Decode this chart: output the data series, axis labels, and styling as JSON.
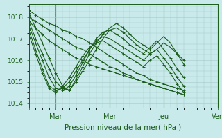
{
  "bg_color": "#c8eaea",
  "plot_bg_color": "#c8eaea",
  "grid_color": "#a8c8c8",
  "line_color": "#1a5c1a",
  "marker": "+",
  "markersize": 3,
  "linewidth": 0.8,
  "xlabel": "Pression niveau de la mer( hPa )",
  "xlabel_fontsize": 7.5,
  "ylim": [
    1013.8,
    1018.6
  ],
  "yticks": [
    1014,
    1015,
    1016,
    1017,
    1018
  ],
  "ytick_fontsize": 6.5,
  "xtick_labels": [
    "",
    "Mar",
    "",
    "Mer",
    "",
    "Jeu",
    "",
    "Ven"
  ],
  "xtick_positions": [
    0,
    24,
    48,
    72,
    96,
    120,
    144,
    168
  ],
  "xtick_fontsize": 7,
  "series": [
    [
      1018.3,
      1018.1,
      1017.9,
      1017.7,
      1017.6,
      1017.4,
      1017.3,
      1017.1,
      1017.0,
      1016.8,
      1016.6,
      1016.4,
      1016.2,
      1016.0,
      1015.8,
      1015.6,
      1015.4,
      1015.3,
      1015.1,
      1015.0,
      1014.9,
      1014.8,
      1014.7,
      1014.6
    ],
    [
      1018.0,
      1017.8,
      1017.6,
      1017.4,
      1017.2,
      1017.0,
      1016.8,
      1016.6,
      1016.5,
      1016.3,
      1016.1,
      1015.9,
      1015.7,
      1015.6,
      1015.4,
      1015.3,
      1015.1,
      1015.0,
      1014.9,
      1014.8,
      1014.7,
      1014.6,
      1014.5,
      1014.4
    ],
    [
      1017.8,
      1017.0,
      1016.3,
      1015.6,
      1015.0,
      1014.7,
      1014.6,
      1015.0,
      1015.5,
      1016.0,
      1016.5,
      1017.0,
      1017.4,
      1017.5,
      1017.3,
      1017.0,
      1016.7,
      1016.5,
      1016.3,
      1016.5,
      1016.8,
      1016.6,
      1016.3,
      1016.0
    ],
    [
      1018.2,
      1017.5,
      1016.8,
      1016.1,
      1015.4,
      1014.8,
      1014.6,
      1015.1,
      1015.7,
      1016.3,
      1016.8,
      1017.2,
      1017.5,
      1017.7,
      1017.5,
      1017.2,
      1016.9,
      1016.7,
      1016.5,
      1016.8,
      1017.1,
      1016.8,
      1016.3,
      1015.8
    ],
    [
      1017.6,
      1016.8,
      1016.0,
      1015.2,
      1014.7,
      1014.6,
      1014.8,
      1015.3,
      1015.9,
      1016.5,
      1017.0,
      1017.3,
      1017.4,
      1017.2,
      1017.0,
      1016.7,
      1016.5,
      1016.3,
      1016.6,
      1016.9,
      1016.5,
      1016.1,
      1015.6,
      1015.2
    ],
    [
      1017.4,
      1016.5,
      1015.6,
      1014.8,
      1014.6,
      1014.7,
      1015.0,
      1015.5,
      1016.0,
      1016.5,
      1016.9,
      1017.1,
      1017.0,
      1016.8,
      1016.6,
      1016.4,
      1016.2,
      1016.0,
      1016.3,
      1016.5,
      1016.1,
      1015.7,
      1015.2,
      1014.8
    ],
    [
      1017.2,
      1016.3,
      1015.4,
      1014.7,
      1014.5,
      1014.8,
      1015.2,
      1015.7,
      1016.2,
      1016.6,
      1016.8,
      1016.9,
      1016.7,
      1016.5,
      1016.3,
      1016.1,
      1015.9,
      1015.7,
      1016.0,
      1016.2,
      1015.8,
      1015.4,
      1014.9,
      1014.5
    ],
    [
      1017.8,
      1017.5,
      1017.2,
      1016.9,
      1016.7,
      1016.5,
      1016.3,
      1016.1,
      1016.0,
      1015.8,
      1015.7,
      1015.6,
      1015.5,
      1015.4,
      1015.3,
      1015.2,
      1015.1,
      1015.0,
      1014.9,
      1014.8,
      1014.7,
      1014.6,
      1014.5,
      1014.4
    ]
  ],
  "x_hours": [
    0,
    6,
    12,
    18,
    24,
    30,
    36,
    42,
    48,
    54,
    60,
    66,
    72,
    78,
    84,
    90,
    96,
    102,
    108,
    114,
    120,
    126,
    132,
    138
  ],
  "xlim": [
    0,
    168
  ],
  "vlines": [
    24,
    72,
    120,
    168
  ],
  "minor_x_step": 6,
  "minor_y_step": 0.25
}
